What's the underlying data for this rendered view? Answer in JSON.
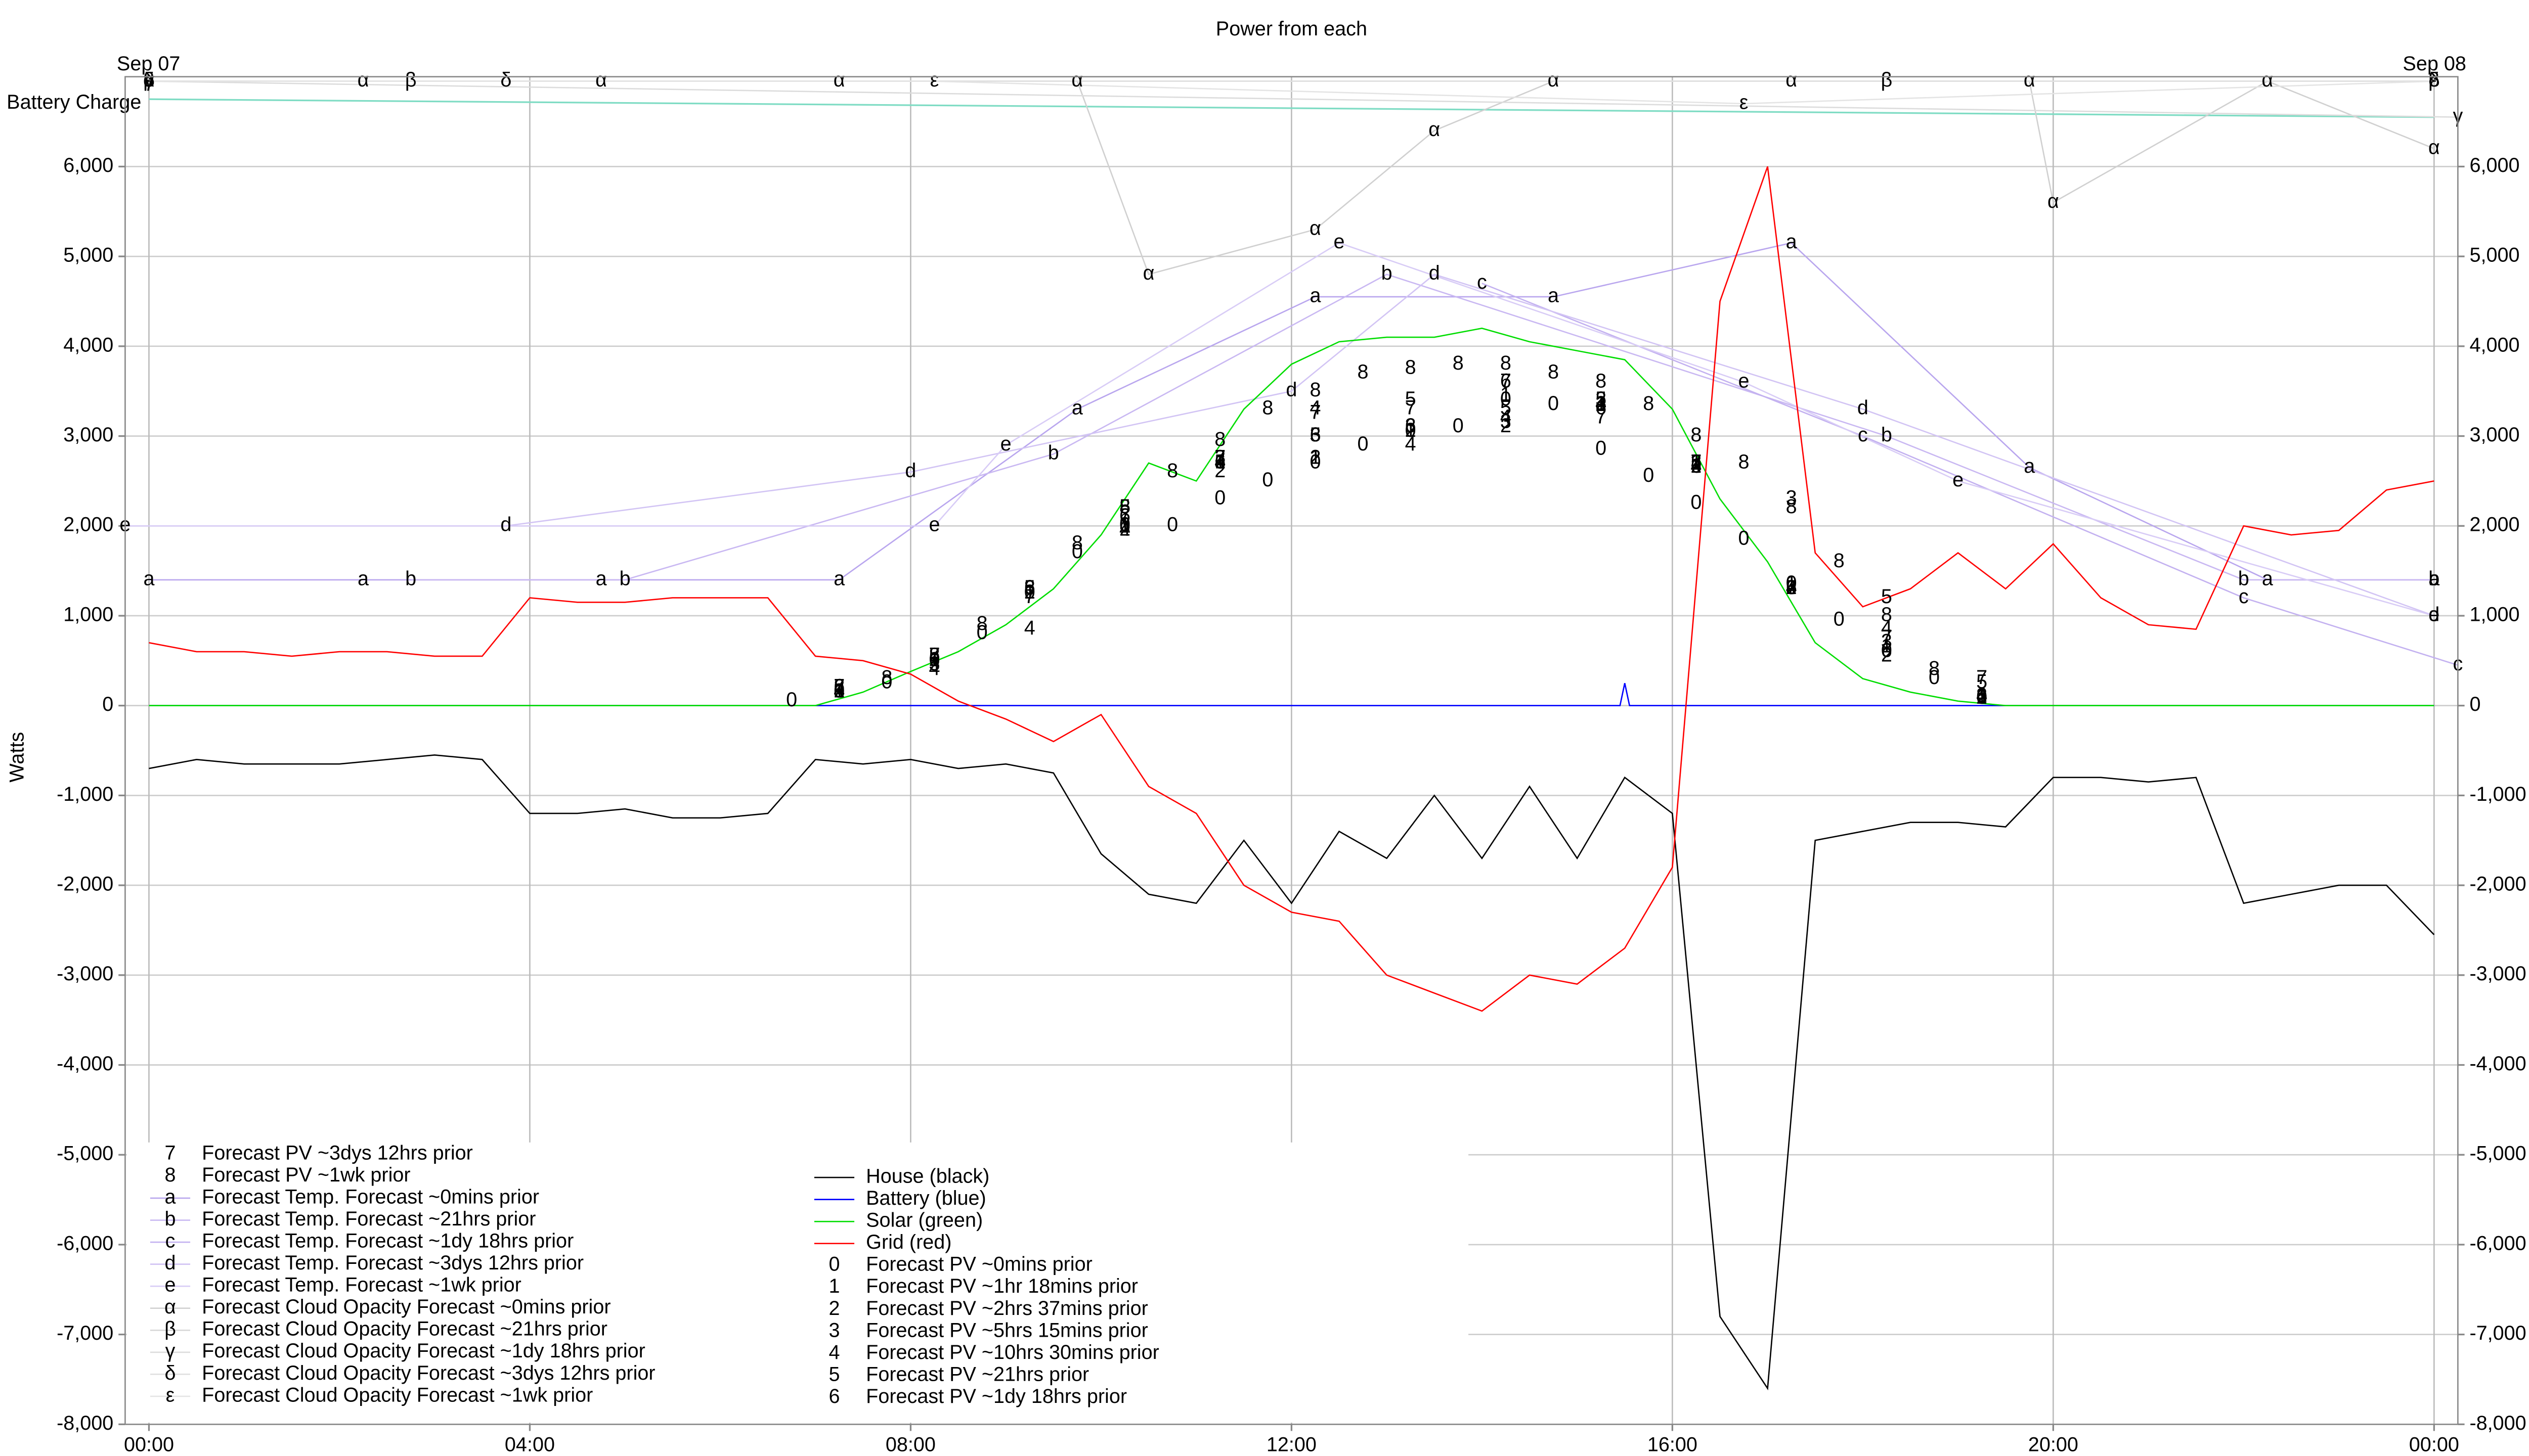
{
  "chart_data": {
    "type": "line",
    "title": "Power from each",
    "ylabel": "Watts",
    "date_labels": [
      "Sep 07",
      "Sep 08"
    ],
    "xlim": [
      -0.25,
      24.25
    ],
    "ylim": [
      -8000,
      7000
    ],
    "xticks": [
      {
        "value": 0,
        "label": "00:00"
      },
      {
        "value": 4,
        "label": "04:00"
      },
      {
        "value": 8,
        "label": "08:00"
      },
      {
        "value": 12,
        "label": "12:00"
      },
      {
        "value": 16,
        "label": "16:00"
      },
      {
        "value": 20,
        "label": "20:00"
      },
      {
        "value": 24,
        "label": "00:00"
      }
    ],
    "yticks": [
      {
        "value": -8000,
        "label": "-8,000"
      },
      {
        "value": -7000,
        "label": "-7,000"
      },
      {
        "value": -6000,
        "label": "-6,000"
      },
      {
        "value": -5000,
        "label": "-5,000"
      },
      {
        "value": -4000,
        "label": "-4,000"
      },
      {
        "value": -3000,
        "label": "-3,000"
      },
      {
        "value": -2000,
        "label": "-2,000"
      },
      {
        "value": -1000,
        "label": "-1,000"
      },
      0,
      {
        "value": 1000,
        "label": "1,000"
      },
      {
        "value": 2000,
        "label": "2,000"
      },
      {
        "value": 3000,
        "label": "3,000"
      },
      {
        "value": 4000,
        "label": "4,000"
      },
      {
        "value": 5000,
        "label": "5,000"
      },
      {
        "value": 6000,
        "label": "6,000"
      }
    ],
    "grid": true,
    "x": [
      0,
      0.5,
      1,
      1.5,
      2,
      2.5,
      3,
      3.5,
      4,
      4.5,
      5,
      5.5,
      6,
      6.5,
      7,
      7.5,
      8,
      8.5,
      9,
      9.5,
      10,
      10.5,
      11,
      11.5,
      12,
      12.5,
      13,
      13.5,
      14,
      14.5,
      15,
      15.5,
      16,
      16.5,
      17,
      17.5,
      18,
      18.5,
      19,
      19.5,
      20,
      20.5,
      21,
      21.5,
      22,
      22.5,
      23,
      23.5,
      24
    ],
    "battery_charge": {
      "name": "Battery Charge",
      "color": "#7fdcc4",
      "x": [
        0,
        24
      ],
      "values": [
        6750,
        6550
      ]
    },
    "series": [
      {
        "name": "Forecast PV ~3dys 12hrs prior",
        "marker": "7",
        "style": "markers",
        "color": "#000000",
        "x": [
          7.25,
          8.25,
          9.25,
          10.25,
          11.25,
          12.25,
          13.25,
          14.25,
          15.25,
          16.25,
          17.25,
          18.25,
          19.25
        ],
        "values": [
          200,
          550,
          1200,
          2100,
          2750,
          3250,
          3300,
          3600,
          3200,
          2700,
          1300,
          750,
          300
        ]
      },
      {
        "name": "Forecast PV ~1wk prior",
        "marker": "8",
        "style": "markers",
        "color": "#000000",
        "x": [
          7.25,
          7.75,
          8.25,
          8.75,
          9.25,
          9.75,
          10.25,
          10.75,
          11.25,
          11.75,
          12.25,
          12.75,
          13.25,
          13.75,
          14.25,
          14.75,
          15.25,
          15.75,
          16.25,
          16.75,
          17.25,
          17.75,
          18.25,
          18.75,
          19.25
        ],
        "values": [
          200,
          300,
          550,
          900,
          1300,
          1800,
          2200,
          2600,
          2950,
          3300,
          3500,
          3700,
          3750,
          3800,
          3800,
          3700,
          3600,
          3350,
          3000,
          2700,
          2200,
          1600,
          1000,
          400,
          100
        ]
      },
      {
        "name": "Forecast Temp. Forecast ~0mins prior",
        "marker": "a",
        "style": "line+markers",
        "color": "#b9a6ee",
        "x": [
          0,
          2.25,
          4.75,
          7.25,
          9.75,
          12.25,
          14.75,
          17.25,
          19.75,
          22.25,
          24
        ],
        "values": [
          1400,
          1400,
          1400,
          1400,
          3300,
          4550,
          4550,
          5150,
          2650,
          1400,
          1400
        ]
      },
      {
        "name": "Forecast Temp. Forecast ~21hrs prior",
        "marker": "b",
        "style": "line+markers",
        "color": "#c9b8f2",
        "x": [
          2.75,
          5,
          9.5,
          13,
          18.25,
          22,
          24
        ],
        "values": [
          1400,
          1400,
          2800,
          4800,
          3000,
          1400,
          1400
        ]
      },
      {
        "name": "Forecast Temp. Forecast ~1dy 18hrs prior",
        "marker": "c",
        "style": "line+markers",
        "color": "#c3b1f0",
        "x": [
          14,
          18,
          22,
          24.25
        ],
        "values": [
          4700,
          3000,
          1200,
          450
        ]
      },
      {
        "name": "Forecast Temp. Forecast ~3dys 12hrs prior",
        "marker": "d",
        "style": "line+markers",
        "color": "#d2c4f4",
        "x": [
          3.75,
          8,
          12,
          13.5,
          18,
          24
        ],
        "values": [
          2000,
          2600,
          3500,
          4800,
          3300,
          1000
        ]
      },
      {
        "name": "Forecast Temp. Forecast ~1wk prior",
        "marker": "e",
        "style": "line+markers",
        "color": "#d8ccf6",
        "x": [
          -0.25,
          8.25,
          9,
          12.5,
          16.75,
          19,
          24
        ],
        "values": [
          2000,
          2000,
          2900,
          5150,
          3600,
          2500,
          1000
        ]
      },
      {
        "name": "Forecast Cloud Opacity Forecast ~0mins prior",
        "marker": "α",
        "style": "line+markers",
        "color": "#d0d0d0",
        "x": [
          0,
          2.25,
          4.75,
          7.25,
          9.75,
          10.5,
          12.25,
          13.5,
          14.75,
          17.25,
          19.75,
          20,
          22.25,
          24
        ],
        "values": [
          6950,
          6950,
          6950,
          6950,
          6950,
          4800,
          5300,
          6400,
          6950,
          6950,
          6950,
          5600,
          6950,
          6200
        ]
      },
      {
        "name": "Forecast Cloud Opacity Forecast ~21hrs prior",
        "marker": "β",
        "style": "line+markers",
        "color": "#d8d8d8",
        "x": [
          0,
          2.75,
          18.25,
          24
        ],
        "values": [
          6950,
          6950,
          6950,
          6950
        ]
      },
      {
        "name": "Forecast Cloud Opacity Forecast ~1dy 18hrs prior",
        "marker": "γ",
        "style": "line+markers",
        "color": "#dcdcdc",
        "x": [
          0,
          24.25
        ],
        "values": [
          6950,
          6550
        ]
      },
      {
        "name": "Forecast Cloud Opacity Forecast ~3dys 12hrs prior",
        "marker": "δ",
        "style": "line+markers",
        "color": "#e0e0e0",
        "x": [
          0,
          3.75,
          24
        ],
        "values": [
          6950,
          6950,
          6950
        ]
      },
      {
        "name": "Forecast Cloud Opacity Forecast ~1wk prior",
        "marker": "ε",
        "style": "line+markers",
        "color": "#e4e4e4",
        "x": [
          0,
          8.25,
          16.75,
          24
        ],
        "values": [
          6950,
          6950,
          6700,
          6950
        ]
      },
      {
        "name": "House (black)",
        "style": "line",
        "color": "#000000",
        "values": [
          -700,
          -600,
          -650,
          -650,
          -650,
          -600,
          -550,
          -600,
          -1200,
          -1200,
          -1150,
          -1250,
          -1250,
          -1200,
          -600,
          -650,
          -600,
          -700,
          -650,
          -750,
          -1650,
          -2100,
          -2200,
          -1500,
          -2200,
          -1400,
          -1700,
          -1000,
          -1700,
          -900,
          -1700,
          -800,
          -1200,
          -6800,
          -7600,
          -1500,
          -1400,
          -1300,
          -1300,
          -1350,
          -800,
          -800,
          -850,
          -800,
          -2200,
          -2100,
          -2000,
          -2000,
          -2550
        ]
      },
      {
        "name": "Battery (blue)",
        "style": "line",
        "color": "#0000ff",
        "x": [
          0,
          15.45,
          15.5,
          15.55,
          24
        ],
        "values": [
          0,
          0,
          250,
          0,
          0
        ]
      },
      {
        "name": "Solar (green)",
        "style": "line",
        "color": "#00dd00",
        "values": [
          0,
          0,
          0,
          0,
          0,
          0,
          0,
          0,
          0,
          0,
          0,
          0,
          0,
          0,
          0,
          150,
          380,
          600,
          900,
          1300,
          1900,
          2700,
          2500,
          3300,
          3800,
          4050,
          4100,
          4100,
          4200,
          4050,
          3950,
          3850,
          3300,
          2300,
          1600,
          700,
          300,
          150,
          50,
          0,
          0,
          0,
          0,
          0,
          0,
          0,
          0,
          0,
          0
        ]
      },
      {
        "name": "Grid (red)",
        "style": "line",
        "color": "#ff0000",
        "values": [
          700,
          600,
          600,
          550,
          600,
          600,
          550,
          550,
          1200,
          1150,
          1150,
          1200,
          1200,
          1200,
          550,
          500,
          350,
          50,
          -150,
          -400,
          -100,
          -900,
          -1200,
          -2000,
          -2300,
          -2400,
          -3000,
          -3200,
          -3400,
          -3000,
          -3100,
          -2700,
          -1800,
          4500,
          6000,
          1700,
          1100,
          1300,
          1700,
          1300,
          1800,
          1200,
          900,
          850,
          2000,
          1900,
          1950,
          2400,
          2500
        ]
      },
      {
        "name": "Forecast PV ~0mins prior",
        "marker": "0",
        "style": "markers",
        "color": "#000000",
        "x": [
          6.75,
          7.25,
          7.75,
          8.25,
          8.75,
          9.25,
          9.75,
          10.25,
          10.75,
          11.25,
          11.75,
          12.25,
          12.75,
          13.25,
          13.75,
          14.25,
          14.75,
          15.25,
          15.75,
          16.25,
          16.75,
          17.25,
          17.75,
          18.25,
          18.75,
          19.25
        ],
        "values": [
          50,
          150,
          250,
          500,
          800,
          1250,
          1700,
          2000,
          2000,
          2300,
          2500,
          2700,
          2900,
          3050,
          3100,
          3400,
          3350,
          2850,
          2550,
          2250,
          1850,
          1350,
          950,
          600,
          300,
          80
        ]
      },
      {
        "name": "Forecast PV ~1hr 18mins prior",
        "marker": "1",
        "style": "markers",
        "color": "#000000",
        "x": [
          7.25,
          8.25,
          9.25,
          10.25,
          11.25,
          12.25,
          13.25,
          14.25,
          15.25,
          16.25,
          17.25,
          18.25,
          19.25
        ],
        "values": [
          150,
          500,
          1250,
          2000,
          2700,
          2750,
          3050,
          3450,
          3350,
          2700,
          1350,
          650,
          100
        ]
      },
      {
        "name": "Forecast PV ~2hrs 37mins prior",
        "marker": "2",
        "style": "markers",
        "color": "#000000",
        "x": [
          7.25,
          8.25,
          9.25,
          10.25,
          11.25,
          12.25,
          13.25,
          14.25,
          15.25,
          16.25,
          17.25,
          18.25,
          19.25
        ],
        "values": [
          150,
          500,
          1250,
          1950,
          2600,
          2750,
          3050,
          3100,
          3400,
          2650,
          1300,
          550,
          80
        ]
      },
      {
        "name": "Forecast PV ~5hrs 15mins prior",
        "marker": "3",
        "style": "markers",
        "color": "#000000",
        "x": [
          7.25,
          8.25,
          9.25,
          10.25,
          11.25,
          12.25,
          13.25,
          14.25,
          15.25,
          16.25,
          17.25,
          18.25,
          19.25
        ],
        "values": [
          150,
          450,
          1300,
          2000,
          2750,
          3000,
          3100,
          3150,
          3350,
          2700,
          2300,
          700,
          100
        ]
      },
      {
        "name": "Forecast PV ~10hrs 30mins prior",
        "marker": "4",
        "style": "markers",
        "color": "#000000",
        "x": [
          7.25,
          8.25,
          9.25,
          10.25,
          11.25,
          12.25,
          13.25,
          14.25,
          15.25,
          16.25,
          17.25,
          18.25,
          19.25
        ],
        "values": [
          150,
          400,
          850,
          1950,
          2700,
          3300,
          2900,
          3200,
          3350,
          2650,
          1300,
          850,
          100
        ]
      },
      {
        "name": "Forecast PV ~21hrs prior",
        "marker": "5",
        "style": "markers",
        "color": "#000000",
        "x": [
          7.25,
          8.25,
          9.25,
          10.25,
          11.25,
          12.25,
          13.25,
          14.25,
          15.25,
          16.25,
          17.25,
          18.25,
          19.25
        ],
        "values": [
          150,
          550,
          1300,
          2200,
          2700,
          3000,
          3400,
          3300,
          3400,
          2700,
          1300,
          1200,
          250
        ]
      },
      {
        "name": "Forecast PV ~1dy 18hrs prior",
        "marker": "6",
        "style": "markers",
        "color": "#000000",
        "x": [
          7.25,
          8.25,
          9.25,
          10.25,
          11.25,
          12.25,
          13.25,
          14.25,
          15.25,
          16.25,
          17.25,
          18.25,
          19.25
        ],
        "values": [
          200,
          500,
          1300,
          2100,
          2700,
          3000,
          3100,
          3600,
          3300,
          2650,
          1300,
          600,
          100
        ]
      }
    ]
  }
}
